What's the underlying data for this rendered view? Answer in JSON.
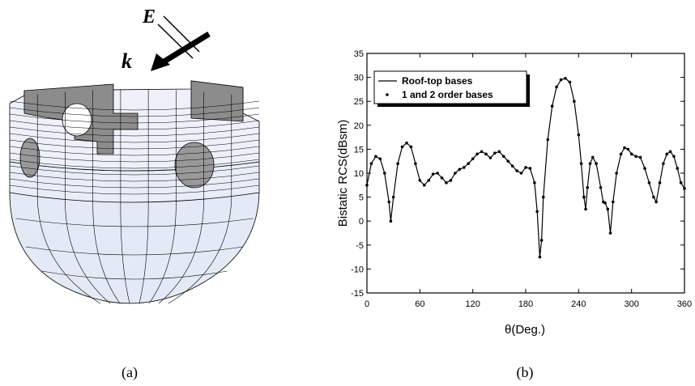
{
  "panel_a": {
    "field_label": "E",
    "wave_label": "k",
    "caption": "(a)"
  },
  "panel_b": {
    "caption": "(b)"
  },
  "chart_data": {
    "type": "line",
    "xlabel": "θ(Deg.)",
    "ylabel": "Bistatic RCS(dBsm)",
    "x": [
      0,
      5,
      10,
      15,
      20,
      25,
      27,
      30,
      35,
      40,
      45,
      50,
      55,
      60,
      65,
      70,
      75,
      80,
      85,
      90,
      95,
      100,
      105,
      110,
      115,
      120,
      125,
      130,
      135,
      140,
      145,
      150,
      155,
      160,
      165,
      170,
      175,
      180,
      185,
      190,
      193,
      196,
      198,
      200,
      205,
      210,
      215,
      220,
      225,
      230,
      235,
      240,
      243,
      246,
      248,
      250,
      253,
      256,
      260,
      265,
      268,
      270,
      273,
      276,
      279,
      283,
      288,
      292,
      296,
      300,
      305,
      310,
      315,
      320,
      325,
      328,
      332,
      336,
      340,
      344,
      348,
      352,
      356,
      360
    ],
    "series": [
      {
        "name": "Roof-top bases",
        "color": "#000000",
        "style": "line",
        "values": [
          7.5,
          12,
          13.5,
          13,
          10,
          4,
          0,
          5,
          12,
          15.5,
          16.3,
          15.5,
          12,
          8.5,
          7.5,
          8.5,
          9.8,
          10,
          9,
          8,
          8.5,
          10,
          10.8,
          11.2,
          12,
          13,
          14,
          14.5,
          14,
          13.2,
          14.2,
          14.5,
          13.5,
          12.5,
          11.5,
          10.5,
          10,
          11.2,
          11,
          8,
          2,
          -7.5,
          -4,
          5,
          17,
          24,
          28,
          29.5,
          29.8,
          29,
          25,
          18,
          12,
          5,
          2.5,
          7,
          12,
          13.3,
          12,
          7,
          4,
          3.8,
          2.5,
          -2.5,
          4,
          10,
          14,
          15.3,
          15,
          14,
          13.5,
          13.3,
          11,
          8,
          5,
          4,
          8,
          12,
          14,
          14.5,
          13.5,
          11,
          8,
          6.8
        ]
      },
      {
        "name": "1 and 2 order bases",
        "color": "#000000",
        "style": "markers",
        "values": [
          7.5,
          12,
          13.5,
          13,
          10,
          4,
          0,
          5,
          12,
          15.5,
          16.3,
          15.5,
          12,
          8.5,
          7.5,
          8.5,
          9.8,
          10,
          9,
          8,
          8.5,
          10,
          10.8,
          11.2,
          12,
          13,
          14,
          14.5,
          14,
          13.2,
          14.2,
          14.5,
          13.5,
          12.5,
          11.5,
          10.5,
          10,
          11.2,
          11,
          8,
          2,
          -7.5,
          -4,
          5,
          17,
          24,
          28,
          29.5,
          29.8,
          29,
          25,
          18,
          12,
          5,
          2.5,
          7,
          12,
          13.3,
          12,
          7,
          4,
          3.8,
          2.5,
          -2.5,
          4,
          10,
          14,
          15.3,
          15,
          14,
          13.5,
          13.3,
          11,
          8,
          5,
          4,
          8,
          12,
          14,
          14.5,
          13.5,
          11,
          8,
          6.8
        ]
      }
    ],
    "xlim": [
      0,
      360
    ],
    "xticks": [
      0,
      60,
      120,
      180,
      240,
      300,
      360
    ],
    "ylim": [
      -15,
      35
    ],
    "yticks": [
      -15,
      -10,
      -5,
      0,
      5,
      10,
      15,
      20,
      25,
      30,
      35
    ],
    "legend": "upper left",
    "grid": false
  }
}
